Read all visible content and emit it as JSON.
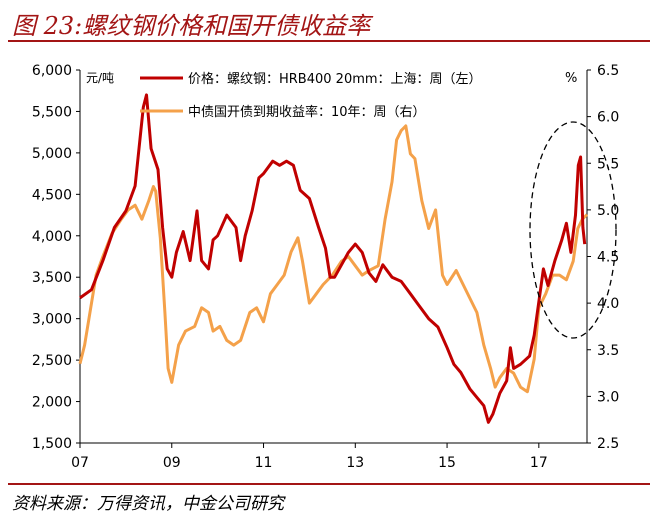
{
  "figure_title": "图 23:螺纹钢价格和国开债收益率",
  "source_note": "资料来源：万得资讯，中金公司研究",
  "colors": {
    "price": "#c00000",
    "yield": "#f4a14a",
    "title": "#a31515"
  },
  "chart_data": {
    "type": "line",
    "title": "螺纹钢价格和国开债收益率",
    "x_axis": {
      "ticks": [
        "07",
        "09",
        "11",
        "13",
        "15",
        "17"
      ],
      "tick_years": [
        2007,
        2009,
        2011,
        2013,
        2015,
        2017
      ],
      "range": [
        2007,
        2018.05
      ]
    },
    "y_left": {
      "unit": "元/吨",
      "range": [
        1500,
        6000
      ],
      "ticks": [
        "1,500",
        "2,000",
        "2,500",
        "3,000",
        "3,500",
        "4,000",
        "4,500",
        "5,000",
        "5,500",
        "6,000"
      ]
    },
    "y_right": {
      "unit": "%",
      "range": [
        2.5,
        6.5
      ],
      "ticks": [
        "2.5",
        "3.0",
        "3.5",
        "4.0",
        "4.5",
        "5.0",
        "5.5",
        "6.0",
        "6.5"
      ]
    },
    "series": [
      {
        "name": "价格：螺纹钢：HRB400 20mm：上海：周（左）",
        "axis": "left",
        "points": [
          [
            2007.0,
            3250
          ],
          [
            2007.25,
            3350
          ],
          [
            2007.5,
            3700
          ],
          [
            2007.75,
            4100
          ],
          [
            2008.0,
            4300
          ],
          [
            2008.2,
            4600
          ],
          [
            2008.38,
            5550
          ],
          [
            2008.45,
            5700
          ],
          [
            2008.55,
            5050
          ],
          [
            2008.7,
            4800
          ],
          [
            2008.8,
            4100
          ],
          [
            2008.9,
            3600
          ],
          [
            2009.0,
            3500
          ],
          [
            2009.1,
            3800
          ],
          [
            2009.25,
            4050
          ],
          [
            2009.4,
            3700
          ],
          [
            2009.55,
            4300
          ],
          [
            2009.65,
            3700
          ],
          [
            2009.8,
            3600
          ],
          [
            2009.9,
            3950
          ],
          [
            2010.0,
            4000
          ],
          [
            2010.2,
            4250
          ],
          [
            2010.4,
            4100
          ],
          [
            2010.5,
            3700
          ],
          [
            2010.6,
            4000
          ],
          [
            2010.75,
            4300
          ],
          [
            2010.9,
            4700
          ],
          [
            2011.0,
            4750
          ],
          [
            2011.2,
            4900
          ],
          [
            2011.35,
            4850
          ],
          [
            2011.5,
            4900
          ],
          [
            2011.65,
            4850
          ],
          [
            2011.8,
            4550
          ],
          [
            2012.0,
            4450
          ],
          [
            2012.2,
            4100
          ],
          [
            2012.35,
            3850
          ],
          [
            2012.45,
            3500
          ],
          [
            2012.55,
            3500
          ],
          [
            2012.7,
            3650
          ],
          [
            2012.85,
            3800
          ],
          [
            2013.0,
            3900
          ],
          [
            2013.15,
            3800
          ],
          [
            2013.3,
            3550
          ],
          [
            2013.45,
            3450
          ],
          [
            2013.6,
            3650
          ],
          [
            2013.8,
            3500
          ],
          [
            2014.0,
            3450
          ],
          [
            2014.2,
            3300
          ],
          [
            2014.4,
            3150
          ],
          [
            2014.6,
            3000
          ],
          [
            2014.8,
            2900
          ],
          [
            2015.0,
            2650
          ],
          [
            2015.15,
            2450
          ],
          [
            2015.3,
            2350
          ],
          [
            2015.5,
            2150
          ],
          [
            2015.65,
            2050
          ],
          [
            2015.8,
            1950
          ],
          [
            2015.9,
            1750
          ],
          [
            2016.0,
            1850
          ],
          [
            2016.15,
            2100
          ],
          [
            2016.3,
            2250
          ],
          [
            2016.38,
            2650
          ],
          [
            2016.45,
            2400
          ],
          [
            2016.6,
            2450
          ],
          [
            2016.8,
            2550
          ],
          [
            2016.9,
            2800
          ],
          [
            2017.0,
            3200
          ],
          [
            2017.1,
            3600
          ],
          [
            2017.2,
            3400
          ],
          [
            2017.35,
            3700
          ],
          [
            2017.5,
            3950
          ],
          [
            2017.6,
            4150
          ],
          [
            2017.7,
            3800
          ],
          [
            2017.8,
            4250
          ],
          [
            2017.86,
            4850
          ],
          [
            2017.91,
            4950
          ],
          [
            2017.96,
            4100
          ],
          [
            2018.0,
            3900
          ]
        ]
      },
      {
        "name": "中债国开债到期收益率：10年：周（右）",
        "axis": "right",
        "points": [
          [
            2007.0,
            3.35
          ],
          [
            2007.1,
            3.55
          ],
          [
            2007.2,
            3.85
          ],
          [
            2007.35,
            4.3
          ],
          [
            2007.5,
            4.5
          ],
          [
            2007.7,
            4.75
          ],
          [
            2007.9,
            4.9
          ],
          [
            2008.05,
            5.0
          ],
          [
            2008.2,
            5.05
          ],
          [
            2008.35,
            4.9
          ],
          [
            2008.5,
            5.1
          ],
          [
            2008.6,
            5.25
          ],
          [
            2008.65,
            5.2
          ],
          [
            2008.75,
            4.7
          ],
          [
            2008.85,
            3.9
          ],
          [
            2008.92,
            3.3
          ],
          [
            2009.0,
            3.15
          ],
          [
            2009.15,
            3.55
          ],
          [
            2009.3,
            3.7
          ],
          [
            2009.5,
            3.75
          ],
          [
            2009.65,
            3.95
          ],
          [
            2009.8,
            3.9
          ],
          [
            2009.9,
            3.7
          ],
          [
            2010.05,
            3.75
          ],
          [
            2010.2,
            3.6
          ],
          [
            2010.35,
            3.55
          ],
          [
            2010.5,
            3.6
          ],
          [
            2010.7,
            3.9
          ],
          [
            2010.85,
            3.95
          ],
          [
            2011.0,
            3.8
          ],
          [
            2011.15,
            4.1
          ],
          [
            2011.3,
            4.2
          ],
          [
            2011.45,
            4.3
          ],
          [
            2011.6,
            4.55
          ],
          [
            2011.75,
            4.7
          ],
          [
            2011.85,
            4.45
          ],
          [
            2012.0,
            4.0
          ],
          [
            2012.15,
            4.1
          ],
          [
            2012.3,
            4.2
          ],
          [
            2012.5,
            4.3
          ],
          [
            2012.7,
            4.45
          ],
          [
            2012.85,
            4.5
          ],
          [
            2013.0,
            4.4
          ],
          [
            2013.15,
            4.3
          ],
          [
            2013.3,
            4.35
          ],
          [
            2013.5,
            4.4
          ],
          [
            2013.65,
            4.9
          ],
          [
            2013.8,
            5.3
          ],
          [
            2013.9,
            5.75
          ],
          [
            2014.0,
            5.85
          ],
          [
            2014.1,
            5.9
          ],
          [
            2014.2,
            5.6
          ],
          [
            2014.3,
            5.55
          ],
          [
            2014.45,
            5.1
          ],
          [
            2014.6,
            4.8
          ],
          [
            2014.75,
            5.0
          ],
          [
            2014.9,
            4.3
          ],
          [
            2015.0,
            4.2
          ],
          [
            2015.2,
            4.35
          ],
          [
            2015.35,
            4.2
          ],
          [
            2015.5,
            4.05
          ],
          [
            2015.65,
            3.9
          ],
          [
            2015.8,
            3.55
          ],
          [
            2015.95,
            3.3
          ],
          [
            2016.05,
            3.1
          ],
          [
            2016.15,
            3.2
          ],
          [
            2016.3,
            3.3
          ],
          [
            2016.45,
            3.25
          ],
          [
            2016.6,
            3.1
          ],
          [
            2016.75,
            3.05
          ],
          [
            2016.9,
            3.4
          ],
          [
            2017.0,
            3.95
          ],
          [
            2017.15,
            4.1
          ],
          [
            2017.3,
            4.3
          ],
          [
            2017.45,
            4.3
          ],
          [
            2017.6,
            4.25
          ],
          [
            2017.75,
            4.45
          ],
          [
            2017.85,
            4.8
          ],
          [
            2017.95,
            4.9
          ],
          [
            2018.05,
            4.95
          ]
        ]
      }
    ],
    "annotation": {
      "shape": "dashed-ellipse",
      "note": "highlights 2017–2018 rise"
    }
  }
}
